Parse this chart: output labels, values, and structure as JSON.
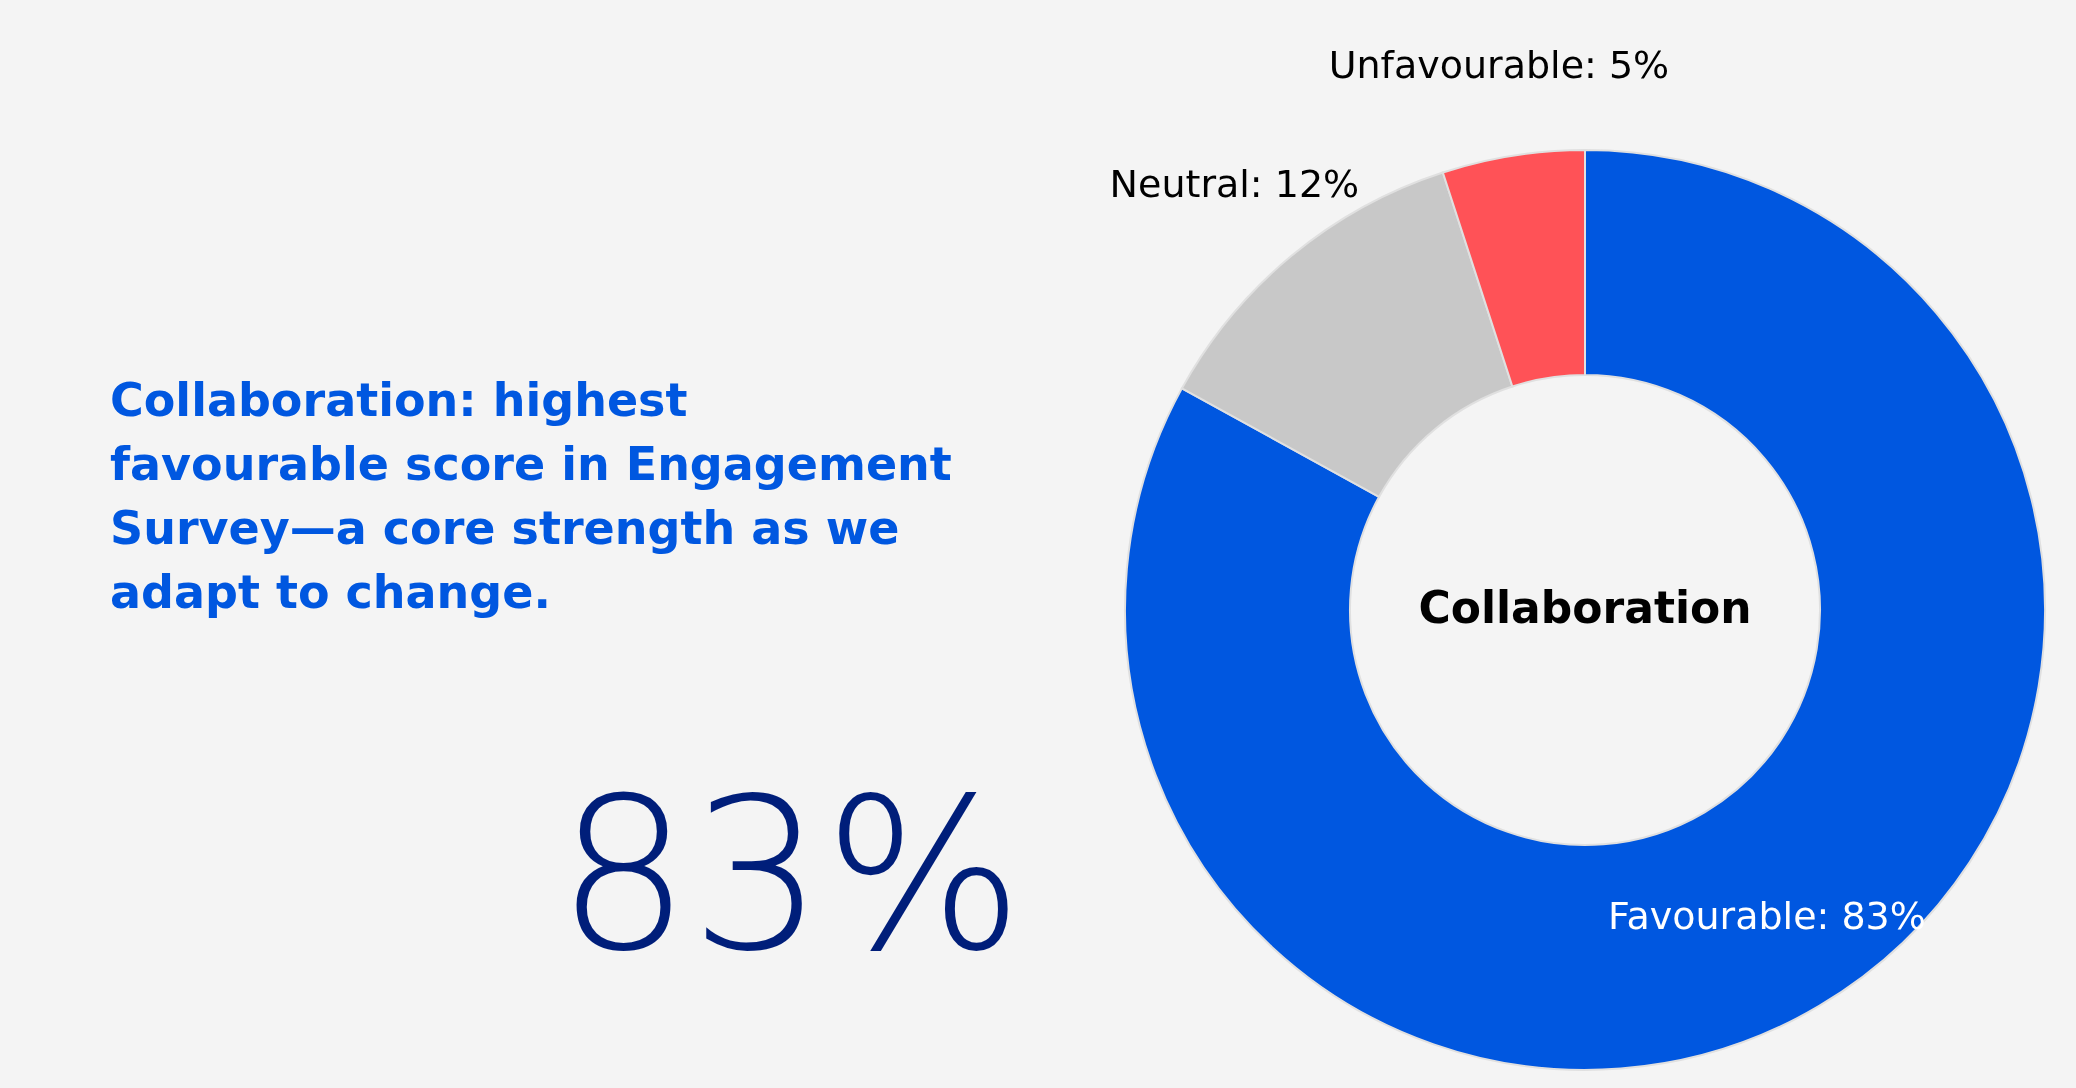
{
  "chart_data": {
    "type": "donut",
    "title": "Collaboration",
    "categories": [
      "Favourable",
      "Neutral",
      "Unfavourable"
    ],
    "values": [
      83,
      12,
      5
    ],
    "colors": [
      "#0057e0",
      "#c8c8c8",
      "#ff5257"
    ],
    "value_labels": [
      "83%",
      "12%",
      "5%"
    ],
    "annotations": [
      "Collaboration: highest favourable score in Engagement Survey—a core strength as we adapt to change.",
      "83%"
    ]
  }
}
